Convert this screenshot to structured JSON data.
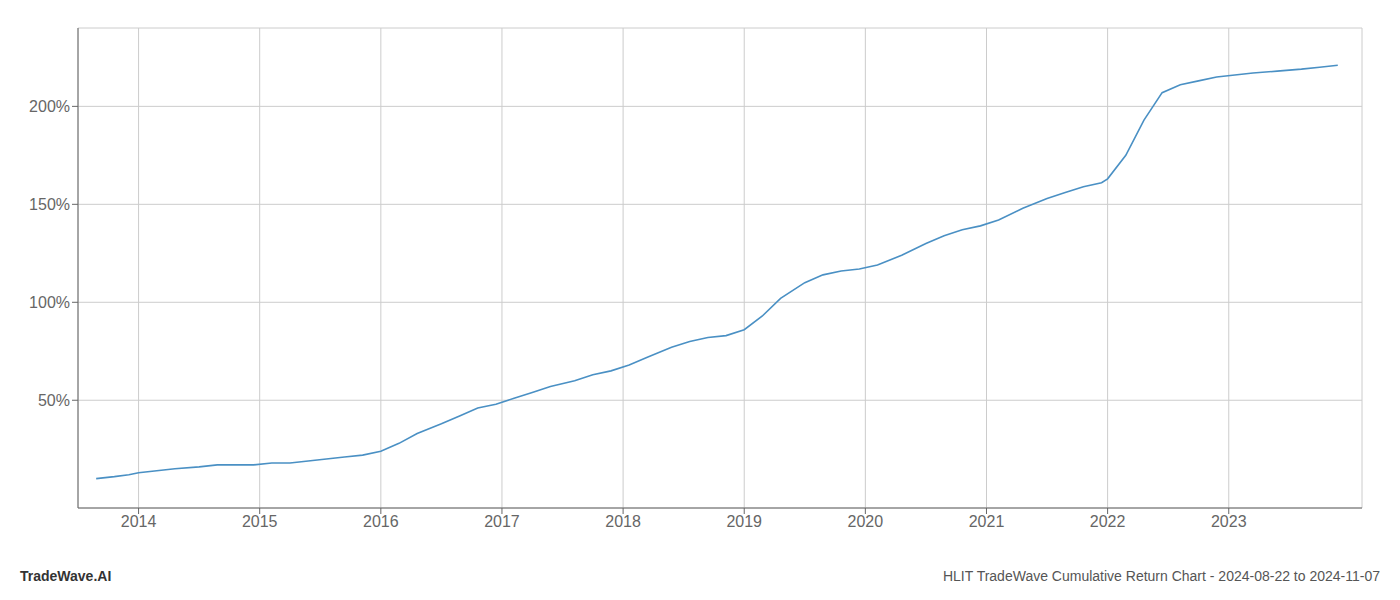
{
  "chart_data": {
    "type": "line",
    "title": "HLIT TradeWave Cumulative Return Chart - 2024-08-22 to 2024-11-07",
    "annotations": [
      "TradeWave.AI"
    ],
    "x": [
      2013.65,
      2013.8,
      2013.92,
      2014.0,
      2014.15,
      2014.3,
      2014.5,
      2014.65,
      2014.8,
      2014.95,
      2015.1,
      2015.25,
      2015.4,
      2015.55,
      2015.7,
      2015.85,
      2016.0,
      2016.15,
      2016.3,
      2016.5,
      2016.65,
      2016.8,
      2016.95,
      2017.1,
      2017.25,
      2017.4,
      2017.6,
      2017.75,
      2017.9,
      2018.05,
      2018.2,
      2018.4,
      2018.55,
      2018.7,
      2018.85,
      2019.0,
      2019.15,
      2019.3,
      2019.5,
      2019.65,
      2019.8,
      2019.95,
      2020.1,
      2020.3,
      2020.5,
      2020.65,
      2020.8,
      2020.95,
      2021.1,
      2021.3,
      2021.5,
      2021.65,
      2021.8,
      2021.95,
      2022.0,
      2022.15,
      2022.3,
      2022.45,
      2022.6,
      2022.75,
      2022.9,
      2023.05,
      2023.2,
      2023.4,
      2023.6,
      2023.75,
      2023.9
    ],
    "values": [
      10,
      11,
      12,
      13,
      14,
      15,
      16,
      17,
      17,
      17,
      18,
      18,
      19,
      20,
      21,
      22,
      24,
      28,
      33,
      38,
      42,
      46,
      48,
      51,
      54,
      57,
      60,
      63,
      65,
      68,
      72,
      77,
      80,
      82,
      83,
      86,
      93,
      102,
      110,
      114,
      116,
      117,
      119,
      124,
      130,
      134,
      137,
      139,
      142,
      148,
      153,
      156,
      159,
      161,
      163,
      175,
      193,
      207,
      211,
      213,
      215,
      216,
      217,
      218,
      219,
      220,
      221
    ],
    "color": "#4a90c4",
    "xlim": [
      2013.5,
      2024.1
    ],
    "xticks": [
      2014,
      2015,
      2016,
      2017,
      2018,
      2019,
      2020,
      2021,
      2022,
      2023
    ],
    "ylim": [
      -5,
      240
    ],
    "yticks": [
      {
        "value": 50,
        "label": "50%"
      },
      {
        "value": 100,
        "label": "100%"
      },
      {
        "value": 150,
        "label": "150%"
      },
      {
        "value": 200,
        "label": "200%"
      }
    ],
    "grid": true
  }
}
